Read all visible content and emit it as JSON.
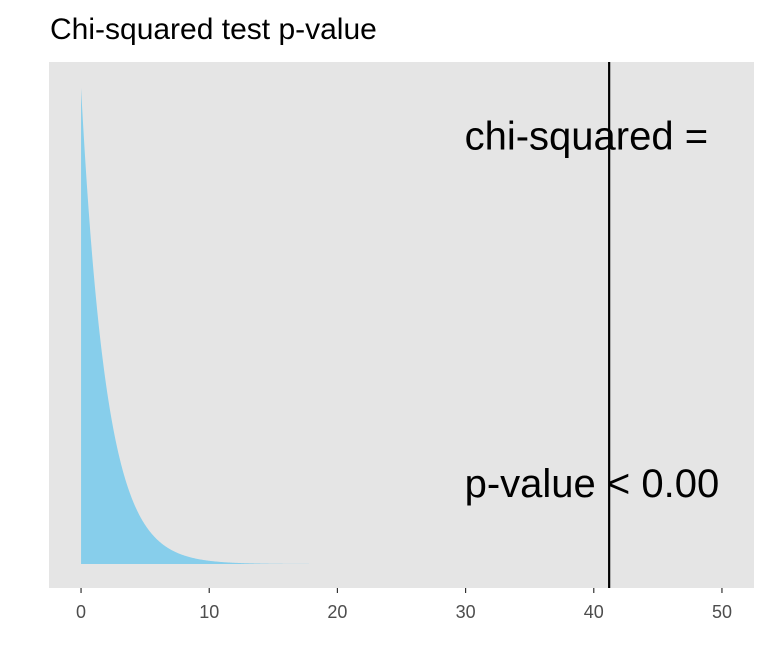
{
  "chart_data": {
    "type": "area",
    "title": "Chi-squared test p-value",
    "xlabel": "",
    "ylabel": "",
    "xlim": [
      -2.5,
      52.5
    ],
    "x_ticks": [
      0,
      10,
      20,
      30,
      40,
      50
    ],
    "x_tick_labels": [
      "0",
      "10",
      "20",
      "30",
      "40",
      "50"
    ],
    "y_ticks_shown": false,
    "grid": false,
    "series": [
      {
        "distribution": "chi-squared density",
        "degrees_of_freedom": 2,
        "x_range": [
          0,
          20
        ],
        "color": "#87CEEB"
      }
    ],
    "vline": {
      "x": 41.2,
      "color": "#000000"
    },
    "annotations": [
      {
        "text": "chi-squared =",
        "x": 30,
        "y_fraction": 0.86
      },
      {
        "text": "p-value < 0.00",
        "x": 30,
        "y_fraction": 0.2
      }
    ],
    "panel_background": "#E5E5E5"
  }
}
